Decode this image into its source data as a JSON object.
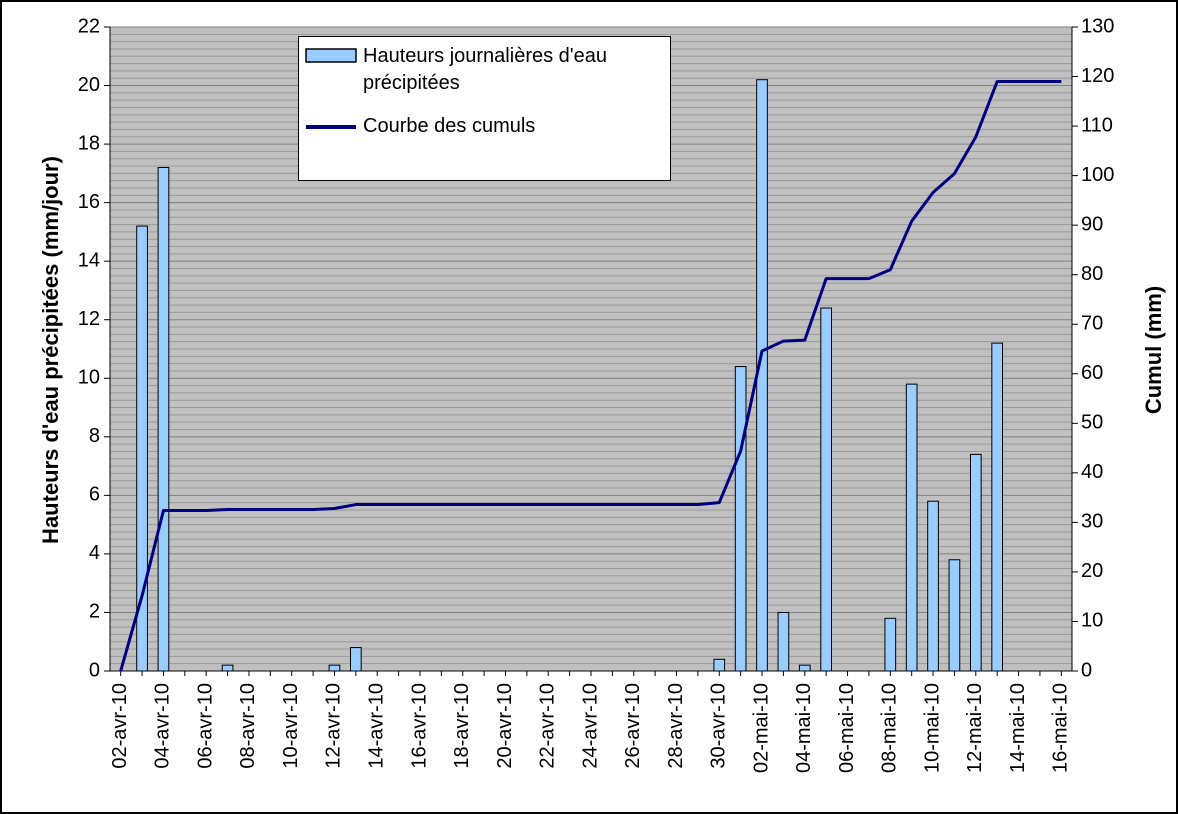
{
  "chart_data": {
    "type": "bar_line",
    "y_label": "Hauteurs d'eau précipitées (mm/jour)",
    "y2_label": "Cumul (mm)",
    "categories": [
      "02-avr-10",
      null,
      "04-avr-10",
      null,
      "06-avr-10",
      null,
      "08-avr-10",
      null,
      "10-avr-10",
      null,
      "12-avr-10",
      null,
      "14-avr-10",
      null,
      "16-avr-10",
      null,
      "18-avr-10",
      null,
      "20-avr-10",
      null,
      "22-avr-10",
      null,
      "24-avr-10",
      null,
      "26-avr-10",
      null,
      "28-avr-10",
      null,
      "30-avr-10",
      null,
      "02-mai-10",
      null,
      "04-mai-10",
      null,
      "06-mai-10",
      null,
      "08-mai-10",
      null,
      "10-mai-10",
      null,
      "12-mai-10",
      null,
      "14-mai-10",
      null,
      "16-mai-10"
    ],
    "series": [
      {
        "name": "Hauteurs journalières d'eau précipitées",
        "type": "bar",
        "color": "#99ccff",
        "axis": "y",
        "values": [
          0,
          15.2,
          17.2,
          0,
          0,
          0.2,
          0,
          0,
          0,
          0,
          0.2,
          0.8,
          0,
          0,
          0,
          0,
          0,
          0,
          0,
          0,
          0,
          0,
          0,
          0,
          0,
          0,
          0,
          0,
          0.4,
          10.4,
          20.2,
          2.0,
          0.2,
          12.4,
          0,
          0,
          1.8,
          9.8,
          5.8,
          3.8,
          7.4,
          11.2,
          0,
          0,
          0
        ]
      },
      {
        "name": "Courbe des cumuls",
        "type": "line",
        "color": "#000080",
        "axis": "y2",
        "values": [
          0,
          15.2,
          32.4,
          32.4,
          32.4,
          32.6,
          32.6,
          32.6,
          32.6,
          32.6,
          32.8,
          33.6,
          33.6,
          33.6,
          33.6,
          33.6,
          33.6,
          33.6,
          33.6,
          33.6,
          33.6,
          33.6,
          33.6,
          33.6,
          33.6,
          33.6,
          33.6,
          33.6,
          34.0,
          44.4,
          64.6,
          66.6,
          66.8,
          79.2,
          79.2,
          79.2,
          81.0,
          90.8,
          96.6,
          100.4,
          107.8,
          119.0,
          119.0,
          119.0,
          119.0
        ]
      }
    ],
    "ylim": [
      0,
      22
    ],
    "yticks": [
      0,
      2,
      4,
      6,
      8,
      10,
      12,
      14,
      16,
      18,
      20,
      22
    ],
    "y2lim": [
      0,
      130
    ],
    "y2ticks": [
      0,
      10,
      20,
      30,
      40,
      50,
      60,
      70,
      80,
      90,
      100,
      110,
      120,
      130
    ],
    "grid": true,
    "plot_background": "#c0c0c0"
  }
}
